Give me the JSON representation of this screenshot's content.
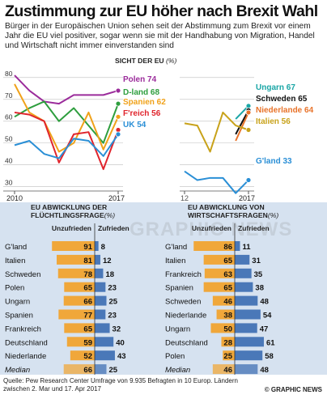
{
  "title": "Zustimmung zur EU höher nach Brexit Wahl",
  "subtitle": "Bürger in der Europäischen Union sehen seit der Abstimmung zum Brexit vor einem Jahr die EU viel positiver, sogar wenn sie mit der Handhabung von Migration, Handel und Wirtschaft nicht immer einverstanden sind",
  "footer": {
    "source": "Quelle: Pew Research Center Umfrage von 9.935 Befragten in 10 Europ. Ländern zwischen 2. Mar und 17. Apr 2017",
    "brand": "© GRAPHIC NEWS",
    "watermark": "GRAPHIC NEWS"
  },
  "chart_data": [
    {
      "type": "line",
      "title": "SICHT DER EU",
      "unit": "(%)",
      "x": [
        2010,
        2011,
        2012,
        2013,
        2014,
        2015,
        2016,
        2017
      ],
      "xlabels": [
        "2010",
        "2017"
      ],
      "yticks": [
        30,
        40,
        50,
        60,
        70,
        80
      ],
      "ylim": [
        28,
        84
      ],
      "grid": true,
      "series": [
        {
          "name": "Polen",
          "label": "Polen 74",
          "color": "#9b2c9b",
          "values": [
            81,
            74,
            69,
            68,
            72,
            72,
            72,
            74
          ]
        },
        {
          "name": "D-land",
          "label": "D-land 68",
          "color": "#2e9e3e",
          "values": [
            62,
            66,
            69,
            60,
            66,
            58,
            50,
            68
          ]
        },
        {
          "name": "Spanien",
          "label": "Spanien 62",
          "color": "#f0a21a",
          "values": [
            77,
            64,
            60,
            46,
            50,
            64,
            47,
            62
          ]
        },
        {
          "name": "F'reich",
          "label": "F'reich 56",
          "color": "#e0242c",
          "values": [
            64,
            63,
            60,
            41,
            54,
            55,
            38,
            56
          ]
        },
        {
          "name": "UK",
          "label": "UK 54",
          "color": "#2a8fd6",
          "values": [
            49,
            51,
            45,
            43,
            52,
            51,
            44,
            54
          ]
        }
      ]
    },
    {
      "type": "line",
      "x": [
        2012,
        2013,
        2014,
        2015,
        2016,
        2017
      ],
      "xlabels": [
        "12",
        "2017"
      ],
      "ylim": [
        28,
        84
      ],
      "grid": true,
      "series": [
        {
          "name": "Ungarn",
          "label": "Ungarn 67",
          "color": "#1aa6a6",
          "values": [
            null,
            null,
            null,
            null,
            61,
            67
          ]
        },
        {
          "name": "Schweden",
          "label": "Schweden 65",
          "color": "#111111",
          "values": [
            null,
            null,
            null,
            null,
            54,
            65
          ]
        },
        {
          "name": "Niederlande",
          "label": "Niederlande 64",
          "color": "#e8732a",
          "values": [
            null,
            null,
            null,
            null,
            51,
            64
          ]
        },
        {
          "name": "Italien",
          "label": "Italien 56",
          "color": "#c8a21a",
          "values": [
            59,
            58,
            46,
            64,
            58,
            56
          ]
        },
        {
          "name": "G'land",
          "label": "G'land 33",
          "color": "#2a8fd6",
          "values": [
            37,
            33,
            34,
            34,
            27,
            33
          ]
        }
      ]
    },
    {
      "type": "bar",
      "title": "EU ABWICKLUNG DER FLÜCHTLINGSFRAGE",
      "unit": "(%)",
      "col_left": "Unzufrieden",
      "col_right": "Zufrieden",
      "categories": [
        "G'land",
        "Italien",
        "Schweden",
        "Polen",
        "Ungarn",
        "Spanien",
        "Frankreich",
        "Deutschland",
        "Niederlande",
        "Median"
      ],
      "series": [
        {
          "name": "Unzufrieden",
          "color": "#f0a73a",
          "values": [
            91,
            81,
            78,
            65,
            66,
            77,
            65,
            59,
            52,
            66
          ]
        },
        {
          "name": "Zufrieden",
          "color": "#4a78b8",
          "values": [
            8,
            12,
            18,
            23,
            25,
            23,
            32,
            40,
            43,
            25
          ]
        }
      ]
    },
    {
      "type": "bar",
      "title": "EU ABWICKLUNG VON WIRTSCHAFTSFRAGEN",
      "unit": "(%)",
      "col_left": "Unzufrieden",
      "col_right": "Zufrieden",
      "categories": [
        "G'land",
        "Italien",
        "Frankreich",
        "Spanien",
        "Schweden",
        "Niederlande",
        "Ungarn",
        "Deutschland",
        "Polen",
        "Median"
      ],
      "series": [
        {
          "name": "Unzufrieden",
          "color": "#f0a73a",
          "values": [
            86,
            65,
            63,
            65,
            46,
            38,
            50,
            28,
            25,
            46
          ]
        },
        {
          "name": "Zufrieden",
          "color": "#4a78b8",
          "values": [
            11,
            31,
            35,
            38,
            48,
            54,
            47,
            61,
            58,
            48
          ]
        }
      ]
    }
  ]
}
